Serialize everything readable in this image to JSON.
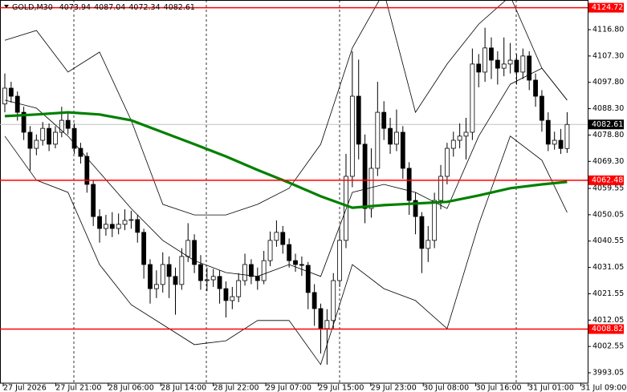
{
  "chart_data": {
    "type": "candlestick",
    "title": "GOLD,M30",
    "ylim": [
      3989.3,
      4127.5
    ],
    "yticks": [
      {
        "value": 4116.8,
        "label": "4116.80"
      },
      {
        "value": 4107.3,
        "label": "4107.30"
      },
      {
        "value": 4097.8,
        "label": "4097.80"
      },
      {
        "value": 4088.3,
        "label": "4088.30"
      },
      {
        "value": 4078.8,
        "label": "4078.80"
      },
      {
        "value": 4069.3,
        "label": "4069.30"
      },
      {
        "value": 4059.55,
        "label": "4059.55"
      },
      {
        "value": 4050.05,
        "label": "4050.05"
      },
      {
        "value": 4040.55,
        "label": "4040.55"
      },
      {
        "value": 4031.05,
        "label": "4031.05"
      },
      {
        "value": 4021.55,
        "label": "4021.55"
      },
      {
        "value": 4012.05,
        "label": "4012.05"
      },
      {
        "value": 4002.55,
        "label": "4002.55"
      },
      {
        "value": 3993.05,
        "label": "3993.05"
      }
    ],
    "categories": [
      "27 Jul 2026",
      "27 Jul 21:00",
      "28 Jul 06:00",
      "28 Jul 14:00",
      "28 Jul 22:00",
      "29 Jul 07:00",
      "29 Jul 15:00",
      "29 Jul 23:00",
      "30 Jul 08:00",
      "30 Jul 16:00",
      "31 Jul 01:00",
      "31 Jul 09:00"
    ],
    "candles": [
      [
        4090.0,
        4101.0,
        4087.0,
        4095.7
      ],
      [
        4095.7,
        4098.0,
        4090.5,
        4092.8
      ],
      [
        4092.8,
        4094.5,
        4084.0,
        4087.0
      ],
      [
        4087.0,
        4089.0,
        4077.0,
        4079.8
      ],
      [
        4079.8,
        4082.0,
        4066.0,
        4074.0
      ],
      [
        4074.0,
        4079.0,
        4071.5,
        4076.9
      ],
      [
        4076.9,
        4083.5,
        4075.0,
        4081.2
      ],
      [
        4081.2,
        4083.0,
        4073.0,
        4075.5
      ],
      [
        4075.5,
        4082.0,
        4074.0,
        4079.8
      ],
      [
        4079.8,
        4089.0,
        4078.0,
        4084.1
      ],
      [
        4084.1,
        4086.5,
        4079.0,
        4081.2
      ],
      [
        4081.2,
        4083.0,
        4072.0,
        4074.0
      ],
      [
        4074.0,
        4076.0,
        4068.5,
        4071.1
      ],
      [
        4071.1,
        4072.5,
        4058.0,
        4061.0
      ],
      [
        4061.0,
        4062.5,
        4046.0,
        4049.4
      ],
      [
        4049.4,
        4052.0,
        4040.0,
        4045.1
      ],
      [
        4045.1,
        4050.0,
        4042.5,
        4046.6
      ],
      [
        4046.6,
        4051.0,
        4042.0,
        4045.1
      ],
      [
        4045.1,
        4050.5,
        4043.0,
        4046.6
      ],
      [
        4046.6,
        4052.0,
        4044.5,
        4048.0
      ],
      [
        4048.0,
        4051.5,
        4045.0,
        4048.3
      ],
      [
        4048.3,
        4050.0,
        4040.0,
        4043.7
      ],
      [
        4043.7,
        4045.0,
        4027.0,
        4032.1
      ],
      [
        4032.1,
        4034.0,
        4018.0,
        4023.4
      ],
      [
        4023.4,
        4030.0,
        4020.0,
        4024.9
      ],
      [
        4024.9,
        4036.5,
        4022.0,
        4032.1
      ],
      [
        4032.1,
        4035.0,
        4020.0,
        4027.8
      ],
      [
        4027.8,
        4031.0,
        4014.0,
        4024.9
      ],
      [
        4024.9,
        4038.0,
        4023.0,
        4035.0
      ],
      [
        4035.0,
        4047.0,
        4033.0,
        4040.8
      ],
      [
        4040.8,
        4043.0,
        4029.0,
        4032.1
      ],
      [
        4032.1,
        4035.5,
        4023.0,
        4026.3
      ],
      [
        4026.3,
        4031.0,
        4022.5,
        4026.6
      ],
      [
        4026.6,
        4030.5,
        4024.0,
        4027.8
      ],
      [
        4027.8,
        4030.0,
        4018.0,
        4023.4
      ],
      [
        4023.4,
        4026.0,
        4013.0,
        4019.1
      ],
      [
        4019.1,
        4024.0,
        4016.0,
        4020.5
      ],
      [
        4020.5,
        4029.0,
        4018.5,
        4026.3
      ],
      [
        4026.3,
        4036.0,
        4024.5,
        4032.1
      ],
      [
        4032.1,
        4034.0,
        4025.0,
        4027.8
      ],
      [
        4027.8,
        4031.0,
        4023.0,
        4026.3
      ],
      [
        4026.3,
        4037.0,
        4025.0,
        4033.5
      ],
      [
        4033.5,
        4044.0,
        4031.5,
        4040.8
      ],
      [
        4040.8,
        4048.0,
        4038.5,
        4043.7
      ],
      [
        4043.7,
        4046.0,
        4036.0,
        4039.3
      ],
      [
        4039.3,
        4041.5,
        4031.0,
        4033.5
      ],
      [
        4033.5,
        4036.0,
        4029.5,
        4032.1
      ],
      [
        4032.1,
        4035.0,
        4028.0,
        4031.8
      ],
      [
        4031.8,
        4033.0,
        4016.0,
        4022.0
      ],
      [
        4022.0,
        4025.0,
        4010.0,
        4016.2
      ],
      [
        4016.2,
        4018.0,
        4000.0,
        4009.0
      ],
      [
        4009.0,
        4016.0,
        3996.0,
        4011.9
      ],
      [
        4011.9,
        4029.0,
        4009.0,
        4026.3
      ],
      [
        4026.3,
        4045.0,
        4024.0,
        4040.8
      ],
      [
        4040.8,
        4072.0,
        4038.0,
        4063.9
      ],
      [
        4063.9,
        4109.0,
        4060.0,
        4092.8
      ],
      [
        4092.8,
        4106.0,
        4070.0,
        4075.5
      ],
      [
        4075.5,
        4079.0,
        4047.0,
        4052.3
      ],
      [
        4052.3,
        4074.0,
        4049.0,
        4066.8
      ],
      [
        4066.8,
        4098.0,
        4064.0,
        4087.0
      ],
      [
        4087.0,
        4091.0,
        4077.0,
        4081.2
      ],
      [
        4081.2,
        4085.0,
        4072.0,
        4075.5
      ],
      [
        4075.5,
        4088.0,
        4073.0,
        4079.8
      ],
      [
        4079.8,
        4082.0,
        4063.0,
        4066.8
      ],
      [
        4066.8,
        4069.0,
        4050.0,
        4055.2
      ],
      [
        4055.2,
        4058.0,
        4043.0,
        4049.4
      ],
      [
        4049.4,
        4051.0,
        4029.0,
        4037.9
      ],
      [
        4037.9,
        4046.0,
        4033.0,
        4040.8
      ],
      [
        4040.8,
        4058.0,
        4038.0,
        4055.2
      ],
      [
        4055.2,
        4068.0,
        4052.0,
        4063.9
      ],
      [
        4063.9,
        4076.0,
        4061.0,
        4074.0
      ],
      [
        4074.0,
        4080.0,
        4071.0,
        4076.9
      ],
      [
        4076.9,
        4083.0,
        4074.0,
        4078.4
      ],
      [
        4078.4,
        4085.0,
        4070.0,
        4079.8
      ],
      [
        4079.8,
        4110.0,
        4077.0,
        4104.4
      ],
      [
        4104.4,
        4108.0,
        4096.0,
        4101.5
      ],
      [
        4101.5,
        4117.5,
        4098.0,
        4110.2
      ],
      [
        4110.2,
        4114.0,
        4099.0,
        4105.8
      ],
      [
        4105.8,
        4109.0,
        4097.0,
        4102.9
      ],
      [
        4102.9,
        4114.0,
        4100.0,
        4104.4
      ],
      [
        4104.4,
        4112.0,
        4101.0,
        4105.8
      ],
      [
        4105.8,
        4108.0,
        4097.0,
        4101.5
      ],
      [
        4101.5,
        4110.0,
        4099.0,
        4107.3
      ],
      [
        4107.3,
        4109.0,
        4095.0,
        4098.6
      ],
      [
        4098.6,
        4101.0,
        4089.0,
        4092.8
      ],
      [
        4092.8,
        4095.0,
        4080.0,
        4084.1
      ],
      [
        4084.1,
        4087.0,
        4073.0,
        4075.5
      ],
      [
        4075.5,
        4080.0,
        4073.5,
        4076.9
      ],
      [
        4076.9,
        4081.0,
        4072.0,
        4073.94
      ],
      [
        4073.94,
        4087.04,
        4072.34,
        4082.61
      ]
    ],
    "color": "#000000",
    "lines": [
      {
        "color": "#000000",
        "x": [
          0,
          5,
          10,
          15,
          20,
          25,
          30,
          35,
          40,
          45,
          50,
          55,
          60,
          65,
          70,
          75,
          80,
          85,
          89
        ],
        "values": [
          4113.0,
          4116.5,
          4101.5,
          4108.7,
          4084.1,
          4053.8,
          4050.0,
          4050.0,
          4053.8,
          4059.6,
          4075.5,
          4110.2,
          4130.4,
          4087.0,
          4104.4,
          4118.8,
          4128.9,
          4102.9,
          4091.4
        ]
      },
      {
        "color": "#000000",
        "x": [
          0,
          5,
          10,
          15,
          20,
          25,
          30,
          35,
          40,
          45,
          50,
          55,
          60,
          65,
          70,
          75,
          80,
          85,
          89
        ],
        "values": [
          4091.4,
          4088.5,
          4078.4,
          4065.3,
          4052.3,
          4040.8,
          4033.5,
          4029.2,
          4027.8,
          4032.1,
          4027.8,
          4058.1,
          4061.0,
          4058.1,
          4052.3,
          4078.4,
          4097.1,
          4102.9,
          4091.4
        ]
      },
      {
        "color": "#000000",
        "x": [
          0,
          5,
          10,
          15,
          20,
          25,
          30,
          35,
          40,
          45,
          50,
          55,
          60,
          65,
          70,
          75,
          80,
          85,
          89
        ],
        "values": [
          4078.4,
          4062.5,
          4058.1,
          4032.1,
          4017.6,
          4010.4,
          4003.2,
          4004.6,
          4011.9,
          4011.9,
          3996.0,
          4032.1,
          4023.4,
          4019.1,
          4009.0,
          4046.6,
          4078.4,
          4069.7,
          4050.9
        ]
      },
      {
        "color": "#008000",
        "x": [
          0,
          5,
          10,
          15,
          20,
          25,
          30,
          35,
          40,
          45,
          50,
          55,
          60,
          65,
          70,
          75,
          80,
          85,
          89
        ],
        "values": [
          4085.6,
          4086.2,
          4087.0,
          4086.2,
          4084.1,
          4079.8,
          4075.5,
          4071.1,
          4066.2,
          4061.6,
          4056.7,
          4052.6,
          4053.5,
          4054.1,
          4054.7,
          4057.0,
          4059.6,
          4061.0,
          4061.9
        ]
      }
    ],
    "levels": [
      4124.72,
      4062.48,
      4008.82
    ],
    "level_color": "#ff0000",
    "last_price": 4082.61
  }
}
